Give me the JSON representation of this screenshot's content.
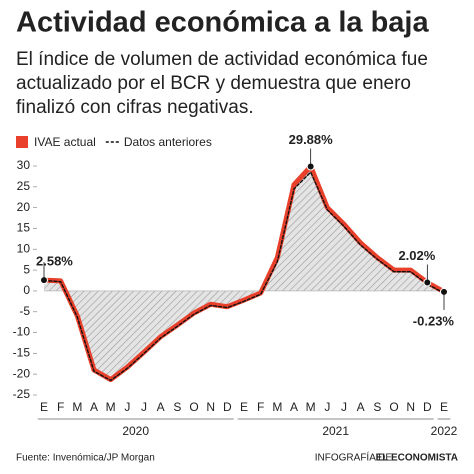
{
  "chart_data": {
    "type": "line",
    "title": "Actividad económica a la baja",
    "subtitle": [
      "El índice de volumen de actividad económica fue",
      "actualizado por el BCR y demuestra que enero",
      "finalizó con cifras negativas."
    ],
    "categories": [
      "E",
      "F",
      "M",
      "A",
      "M",
      "J",
      "J",
      "A",
      "S",
      "O",
      "N",
      "D",
      "E",
      "F",
      "M",
      "A",
      "M",
      "J",
      "J",
      "A",
      "S",
      "O",
      "N",
      "D",
      "E"
    ],
    "years": [
      "2020",
      "2021",
      "2022"
    ],
    "series": [
      {
        "name": "IVAE actual",
        "color": "#e8402a",
        "dash": false,
        "values": [
          2.58,
          2.4,
          -6,
          -19,
          -21.3,
          -18.3,
          -14.7,
          -11,
          -8.2,
          -5.3,
          -3.2,
          -3.8,
          -2.2,
          -0.5,
          8,
          25.5,
          29.88,
          20,
          16,
          11.5,
          8,
          5,
          5,
          2.02,
          -0.23
        ],
        "value_labels": [
          "2.58%",
          null,
          null,
          null,
          null,
          null,
          null,
          null,
          null,
          null,
          null,
          null,
          null,
          null,
          null,
          null,
          "29.88%",
          null,
          null,
          null,
          null,
          null,
          null,
          "2.02%",
          "-0.23%"
        ]
      },
      {
        "name": "Datos anteriores",
        "color": "#111111",
        "dash": true,
        "values": [
          2.5,
          2.2,
          -6.3,
          -19.3,
          -21.5,
          -18.6,
          -15,
          -11.3,
          -8.5,
          -5.6,
          -3.5,
          -4,
          -2.5,
          -0.8,
          7,
          24.5,
          28.5,
          19.5,
          15.5,
          11,
          7.6,
          4.6,
          4.6,
          1.6,
          -0.5
        ]
      }
    ],
    "ylim": [
      -25,
      30
    ],
    "yticks": [
      -25,
      -20,
      -15,
      -10,
      -5,
      0,
      5,
      10,
      15,
      20,
      25,
      30
    ],
    "grid": false,
    "source": "Fuente:  Invenómica/JP Morgan",
    "credit": "INFOGRAFÍA DE",
    "brand": "EL ECONOMISTA"
  }
}
